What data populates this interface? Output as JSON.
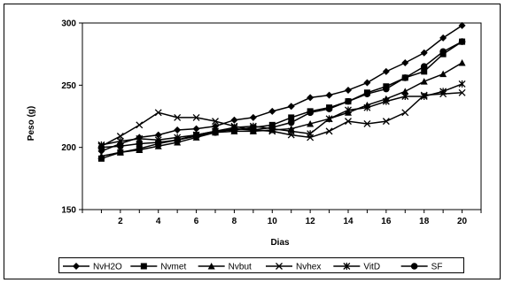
{
  "chart_data": {
    "type": "line",
    "title": "",
    "xlabel": "Dias",
    "ylabel": "Peso (g)",
    "ylim": [
      150,
      300
    ],
    "yticks": [
      150,
      200,
      250,
      300
    ],
    "xlim": [
      0,
      21
    ],
    "xticks": [
      2,
      4,
      6,
      8,
      10,
      12,
      14,
      16,
      18,
      20
    ],
    "grid": false,
    "legend_position": "bottom",
    "x": [
      1,
      2,
      3,
      4,
      5,
      6,
      7,
      8,
      9,
      10,
      11,
      12,
      13,
      14,
      15,
      16,
      17,
      18,
      19,
      20
    ],
    "series": [
      {
        "name": "NvH2O",
        "marker": "diamond",
        "values": [
          197,
          203,
          208,
          210,
          214,
          215,
          217,
          222,
          224,
          229,
          233,
          240,
          242,
          246,
          252,
          261,
          268,
          276,
          288,
          298
        ]
      },
      {
        "name": "Nvmet",
        "marker": "square",
        "values": [
          191,
          196,
          199,
          203,
          206,
          210,
          213,
          214,
          216,
          218,
          224,
          229,
          232,
          237,
          244,
          249,
          256,
          261,
          275,
          285
        ]
      },
      {
        "name": "Nvbut",
        "marker": "triangle",
        "values": [
          193,
          196,
          198,
          201,
          204,
          208,
          212,
          213,
          213,
          214,
          215,
          219,
          223,
          228,
          234,
          239,
          245,
          253,
          259,
          268
        ]
      },
      {
        "name": "Nvhex",
        "marker": "x",
        "values": [
          201,
          209,
          218,
          228,
          224,
          224,
          221,
          217,
          214,
          213,
          210,
          208,
          213,
          221,
          219,
          221,
          228,
          242,
          243,
          244
        ]
      },
      {
        "name": "VitD",
        "marker": "star",
        "values": [
          202,
          205,
          207,
          206,
          208,
          210,
          213,
          216,
          217,
          215,
          213,
          211,
          223,
          230,
          232,
          237,
          241,
          241,
          245,
          251
        ]
      },
      {
        "name": "SF",
        "marker": "circle",
        "values": [
          200,
          201,
          203,
          204,
          206,
          209,
          212,
          215,
          214,
          216,
          220,
          228,
          231,
          237,
          243,
          247,
          256,
          265,
          277,
          285
        ]
      }
    ]
  }
}
